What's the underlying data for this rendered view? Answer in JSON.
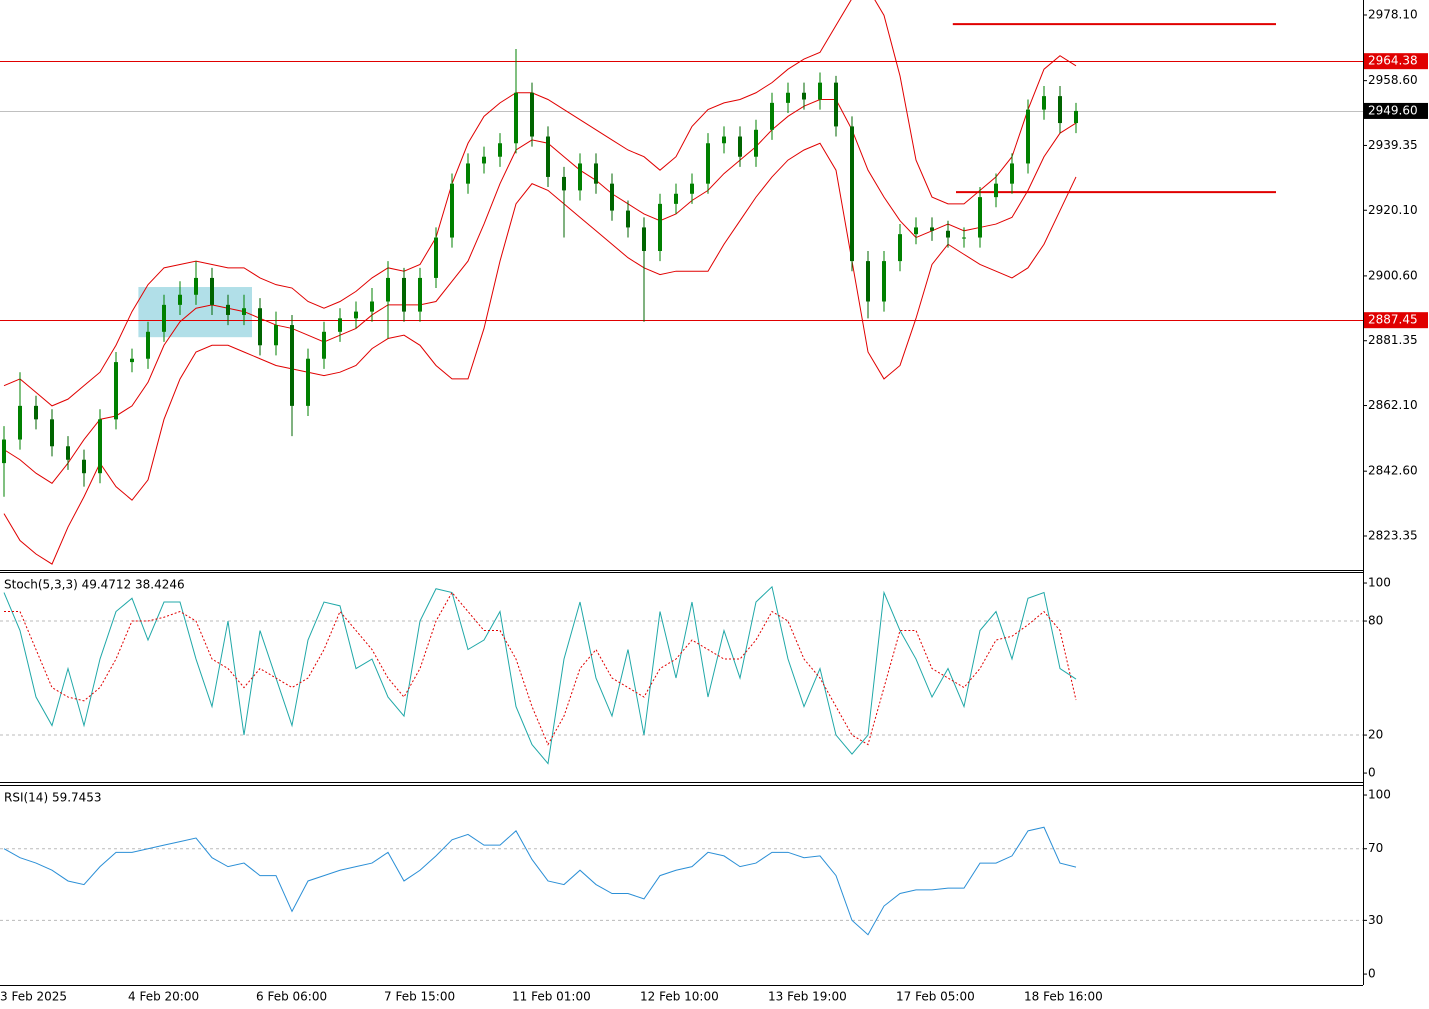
{
  "chart_data": [
    {
      "type": "candlestick",
      "categories": [
        "3 Feb 2025",
        null,
        null,
        null,
        null,
        null,
        null,
        null,
        "4 Feb 20:00",
        null,
        null,
        null,
        null,
        null,
        null,
        null,
        "6 Feb 06:00",
        null,
        null,
        null,
        null,
        null,
        null,
        null,
        "7 Feb 15:00",
        null,
        null,
        null,
        null,
        null,
        null,
        null,
        "11 Feb 01:00",
        null,
        null,
        null,
        null,
        null,
        null,
        null,
        "12 Feb 10:00",
        null,
        null,
        null,
        null,
        null,
        null,
        null,
        "13 Feb 19:00",
        null,
        null,
        null,
        null,
        null,
        null,
        null,
        "17 Feb 05:00",
        null,
        null,
        null,
        null,
        null,
        null,
        null,
        "18 Feb 16:00",
        null,
        null,
        null
      ],
      "open": [
        2845,
        2852,
        2862,
        2858,
        2850,
        2846,
        2842,
        2858,
        2875,
        2876,
        2884,
        2892,
        2895,
        2900,
        2892,
        2889,
        2891,
        2880,
        2886,
        2862,
        2876,
        2884,
        2888,
        2890,
        2893,
        2900,
        2890,
        2900,
        2912,
        2928,
        2934,
        2936,
        2940,
        2955,
        2942,
        2930,
        2926,
        2934,
        2928,
        2920,
        2915,
        2908,
        2922,
        2925,
        2928,
        2940,
        2942,
        2936,
        2944,
        2952,
        2955,
        2953,
        2958,
        2945,
        2905,
        2893,
        2905,
        2913,
        2915,
        2914,
        2912,
        2912,
        2924,
        2928,
        2934,
        2950,
        2954,
        2946
      ],
      "high": [
        2856,
        2872,
        2865,
        2861,
        2853,
        2849,
        2861,
        2878,
        2879,
        2887,
        2895,
        2899,
        2905,
        2903,
        2895,
        2895,
        2894,
        2890,
        2889,
        2879,
        2887,
        2891,
        2893,
        2897,
        2905,
        2903,
        2903,
        2915,
        2931,
        2937,
        2939,
        2943,
        2968,
        2958,
        2945,
        2933,
        2937,
        2937,
        2931,
        2923,
        2918,
        2925,
        2928,
        2931,
        2943,
        2945,
        2945,
        2947,
        2955,
        2958,
        2958,
        2961,
        2960,
        2948,
        2908,
        2908,
        2916,
        2918,
        2918,
        2917,
        2915,
        2927,
        2931,
        2937,
        2953,
        2957,
        2957,
        2952
      ],
      "low": [
        2835,
        2849,
        2855,
        2847,
        2843,
        2838,
        2839,
        2855,
        2872,
        2873,
        2881,
        2889,
        2892,
        2889,
        2886,
        2886,
        2877,
        2877,
        2853,
        2859,
        2873,
        2881,
        2885,
        2887,
        2882,
        2887,
        2887,
        2897,
        2909,
        2925,
        2931,
        2933,
        2937,
        2939,
        2927,
        2912,
        2923,
        2925,
        2917,
        2912,
        2887,
        2905,
        2919,
        2922,
        2925,
        2937,
        2933,
        2933,
        2941,
        2949,
        2950,
        2950,
        2942,
        2902,
        2888,
        2890,
        2902,
        2910,
        2911,
        2909,
        2909,
        2909,
        2921,
        2925,
        2931,
        2947,
        2943,
        2943
      ],
      "close": [
        2852,
        2862,
        2858,
        2850,
        2846,
        2842,
        2858,
        2875,
        2876,
        2884,
        2892,
        2895,
        2900,
        2892,
        2889,
        2891,
        2880,
        2886,
        2862,
        2876,
        2884,
        2888,
        2890,
        2893,
        2900,
        2890,
        2900,
        2912,
        2928,
        2934,
        2936,
        2940,
        2955,
        2942,
        2930,
        2926,
        2934,
        2928,
        2920,
        2915,
        2908,
        2922,
        2925,
        2928,
        2940,
        2942,
        2936,
        2944,
        2952,
        2955,
        2953,
        2958,
        2945,
        2905,
        2893,
        2905,
        2913,
        2915,
        2914,
        2912,
        2912,
        2924,
        2928,
        2934,
        2950,
        2954,
        2946,
        2949.6
      ],
      "up_color": "#008000",
      "down_color": "#006400",
      "bands": {
        "color": "#e00000",
        "upper": [
          2868,
          2870,
          2866,
          2862,
          2864,
          2868,
          2872,
          2880,
          2890,
          2898,
          2903,
          2904,
          2905,
          2904,
          2903,
          2903,
          2900,
          2898,
          2897,
          2893,
          2891,
          2893,
          2896,
          2900,
          2903,
          2902,
          2904,
          2912,
          2928,
          2940,
          2948,
          2952,
          2955,
          2955,
          2953,
          2950,
          2947,
          2944,
          2941,
          2938,
          2936,
          2932,
          2936,
          2945,
          2950,
          2952,
          2953,
          2955,
          2958,
          2962,
          2965,
          2967,
          2975,
          2983,
          2986,
          2978,
          2960,
          2935,
          2924,
          2922,
          2922,
          2926,
          2930,
          2936,
          2950,
          2962,
          2966,
          2963
        ],
        "middle": [
          2849,
          2846,
          2842,
          2839,
          2845,
          2852,
          2858,
          2859,
          2862,
          2869,
          2880,
          2887,
          2891,
          2892,
          2891,
          2890,
          2888,
          2886,
          2885,
          2883,
          2881,
          2883,
          2885,
          2889,
          2892,
          2892,
          2892,
          2893,
          2899,
          2905,
          2916,
          2928,
          2938,
          2941,
          2940,
          2936,
          2932,
          2929,
          2925,
          2922,
          2919,
          2917,
          2919,
          2923,
          2926,
          2931,
          2935,
          2939,
          2944,
          2948,
          2951,
          2953,
          2953,
          2944,
          2932,
          2924,
          2917,
          2912,
          2914,
          2916,
          2914,
          2915,
          2916,
          2918,
          2926,
          2936,
          2943,
          2946
        ],
        "lower": [
          2830,
          2822,
          2818,
          2815,
          2826,
          2835,
          2845,
          2838,
          2834,
          2840,
          2858,
          2870,
          2878,
          2880,
          2880,
          2878,
          2876,
          2874,
          2873,
          2872,
          2871,
          2872,
          2874,
          2879,
          2882,
          2883,
          2880,
          2874,
          2870,
          2870,
          2885,
          2905,
          2922,
          2928,
          2926,
          2922,
          2918,
          2914,
          2910,
          2906,
          2903,
          2901,
          2902,
          2902,
          2902,
          2910,
          2917,
          2924,
          2930,
          2935,
          2938,
          2940,
          2932,
          2905,
          2878,
          2870,
          2874,
          2888,
          2904,
          2910,
          2907,
          2904,
          2902,
          2900,
          2903,
          2910,
          2920,
          2930
        ]
      },
      "levels": [
        {
          "price": 2964.38,
          "color": "#e00000",
          "label_bg": "#e00000"
        },
        {
          "price": 2949.6,
          "price_label": "2949.60",
          "color": "#c0c0c0",
          "label_bg": "#000000"
        },
        {
          "price": 2887.45,
          "color": "#e00000",
          "label_bg": "#e00000"
        }
      ],
      "segments": [
        {
          "price": 2975.4,
          "start": 59.3,
          "end": 79.5,
          "color": "#e00000"
        },
        {
          "price": 2925.5,
          "start": 59.5,
          "end": 79.5,
          "color": "#e00000"
        }
      ],
      "box": {
        "from": 8.4,
        "to": 15.5,
        "low": 2882.4,
        "high": 2897.3,
        "color": "#a8dce6"
      },
      "ylim": [
        2813.25,
        2982.55
      ],
      "yticks": [
        {
          "value": 2978.1,
          "label": "2978.10"
        },
        {
          "value": 2958.6,
          "label": "2958.60"
        },
        2939.35,
        {
          "value": 2920.1,
          "label": "2920.10"
        },
        {
          "value": 2900.6,
          "label": "2900.60"
        },
        2881.35,
        {
          "value": 2862.1,
          "label": "2862.10"
        },
        {
          "value": 2842.6,
          "label": "2842.60"
        },
        2823.35
      ]
    },
    {
      "type": "line",
      "title": "Stoch(5,3,3) 49.4712 38.4246",
      "series": [
        {
          "color": "#20a8a8",
          "values": [
            95,
            75,
            40,
            25,
            55,
            25,
            60,
            85,
            92,
            70,
            90,
            90,
            60,
            35,
            80,
            20,
            75,
            50,
            25,
            70,
            90,
            88,
            55,
            60,
            40,
            30,
            80,
            97,
            95,
            65,
            70,
            85,
            35,
            15,
            5,
            60,
            90,
            50,
            30,
            65,
            20,
            85,
            50,
            90,
            40,
            75,
            50,
            90,
            98,
            60,
            35,
            55,
            20,
            10,
            20,
            95,
            75,
            60,
            40,
            55,
            35,
            75,
            85,
            60,
            92,
            95,
            55,
            49.4712
          ]
        },
        {
          "color": "#e00000",
          "dash": true,
          "values": [
            85,
            85,
            65,
            45,
            40,
            38,
            45,
            60,
            80,
            80,
            82,
            85,
            80,
            60,
            55,
            45,
            55,
            50,
            45,
            50,
            65,
            85,
            75,
            65,
            50,
            40,
            55,
            80,
            95,
            85,
            75,
            75,
            60,
            35,
            15,
            30,
            55,
            65,
            50,
            45,
            40,
            55,
            60,
            70,
            65,
            60,
            60,
            70,
            85,
            80,
            60,
            50,
            35,
            20,
            15,
            45,
            75,
            75,
            55,
            50,
            45,
            55,
            70,
            72,
            78,
            85,
            75,
            38.4246
          ]
        }
      ],
      "ylim": [
        -4.7,
        105.8
      ],
      "yticks": [
        100,
        80,
        20,
        0
      ],
      "grid": "dashed"
    },
    {
      "type": "line",
      "title": "RSI(14) 59.7453",
      "series": [
        {
          "color": "#2b8fd6",
          "values": [
            70,
            65,
            62,
            58,
            52,
            50,
            60,
            68,
            68,
            70,
            72,
            74,
            76,
            65,
            60,
            62,
            55,
            55,
            35,
            52,
            55,
            58,
            60,
            62,
            68,
            52,
            58,
            66,
            75,
            78,
            72,
            72,
            80,
            64,
            52,
            50,
            58,
            50,
            45,
            45,
            42,
            55,
            58,
            60,
            68,
            66,
            60,
            62,
            68,
            68,
            65,
            66,
            55,
            30,
            22,
            38,
            45,
            47,
            47,
            48,
            48,
            62,
            62,
            66,
            80,
            82,
            62,
            59.7453
          ]
        }
      ],
      "ylim": [
        -6.1,
        105.6
      ],
      "yticks": [
        100,
        70,
        30,
        0
      ],
      "grid": "dashed"
    }
  ]
}
